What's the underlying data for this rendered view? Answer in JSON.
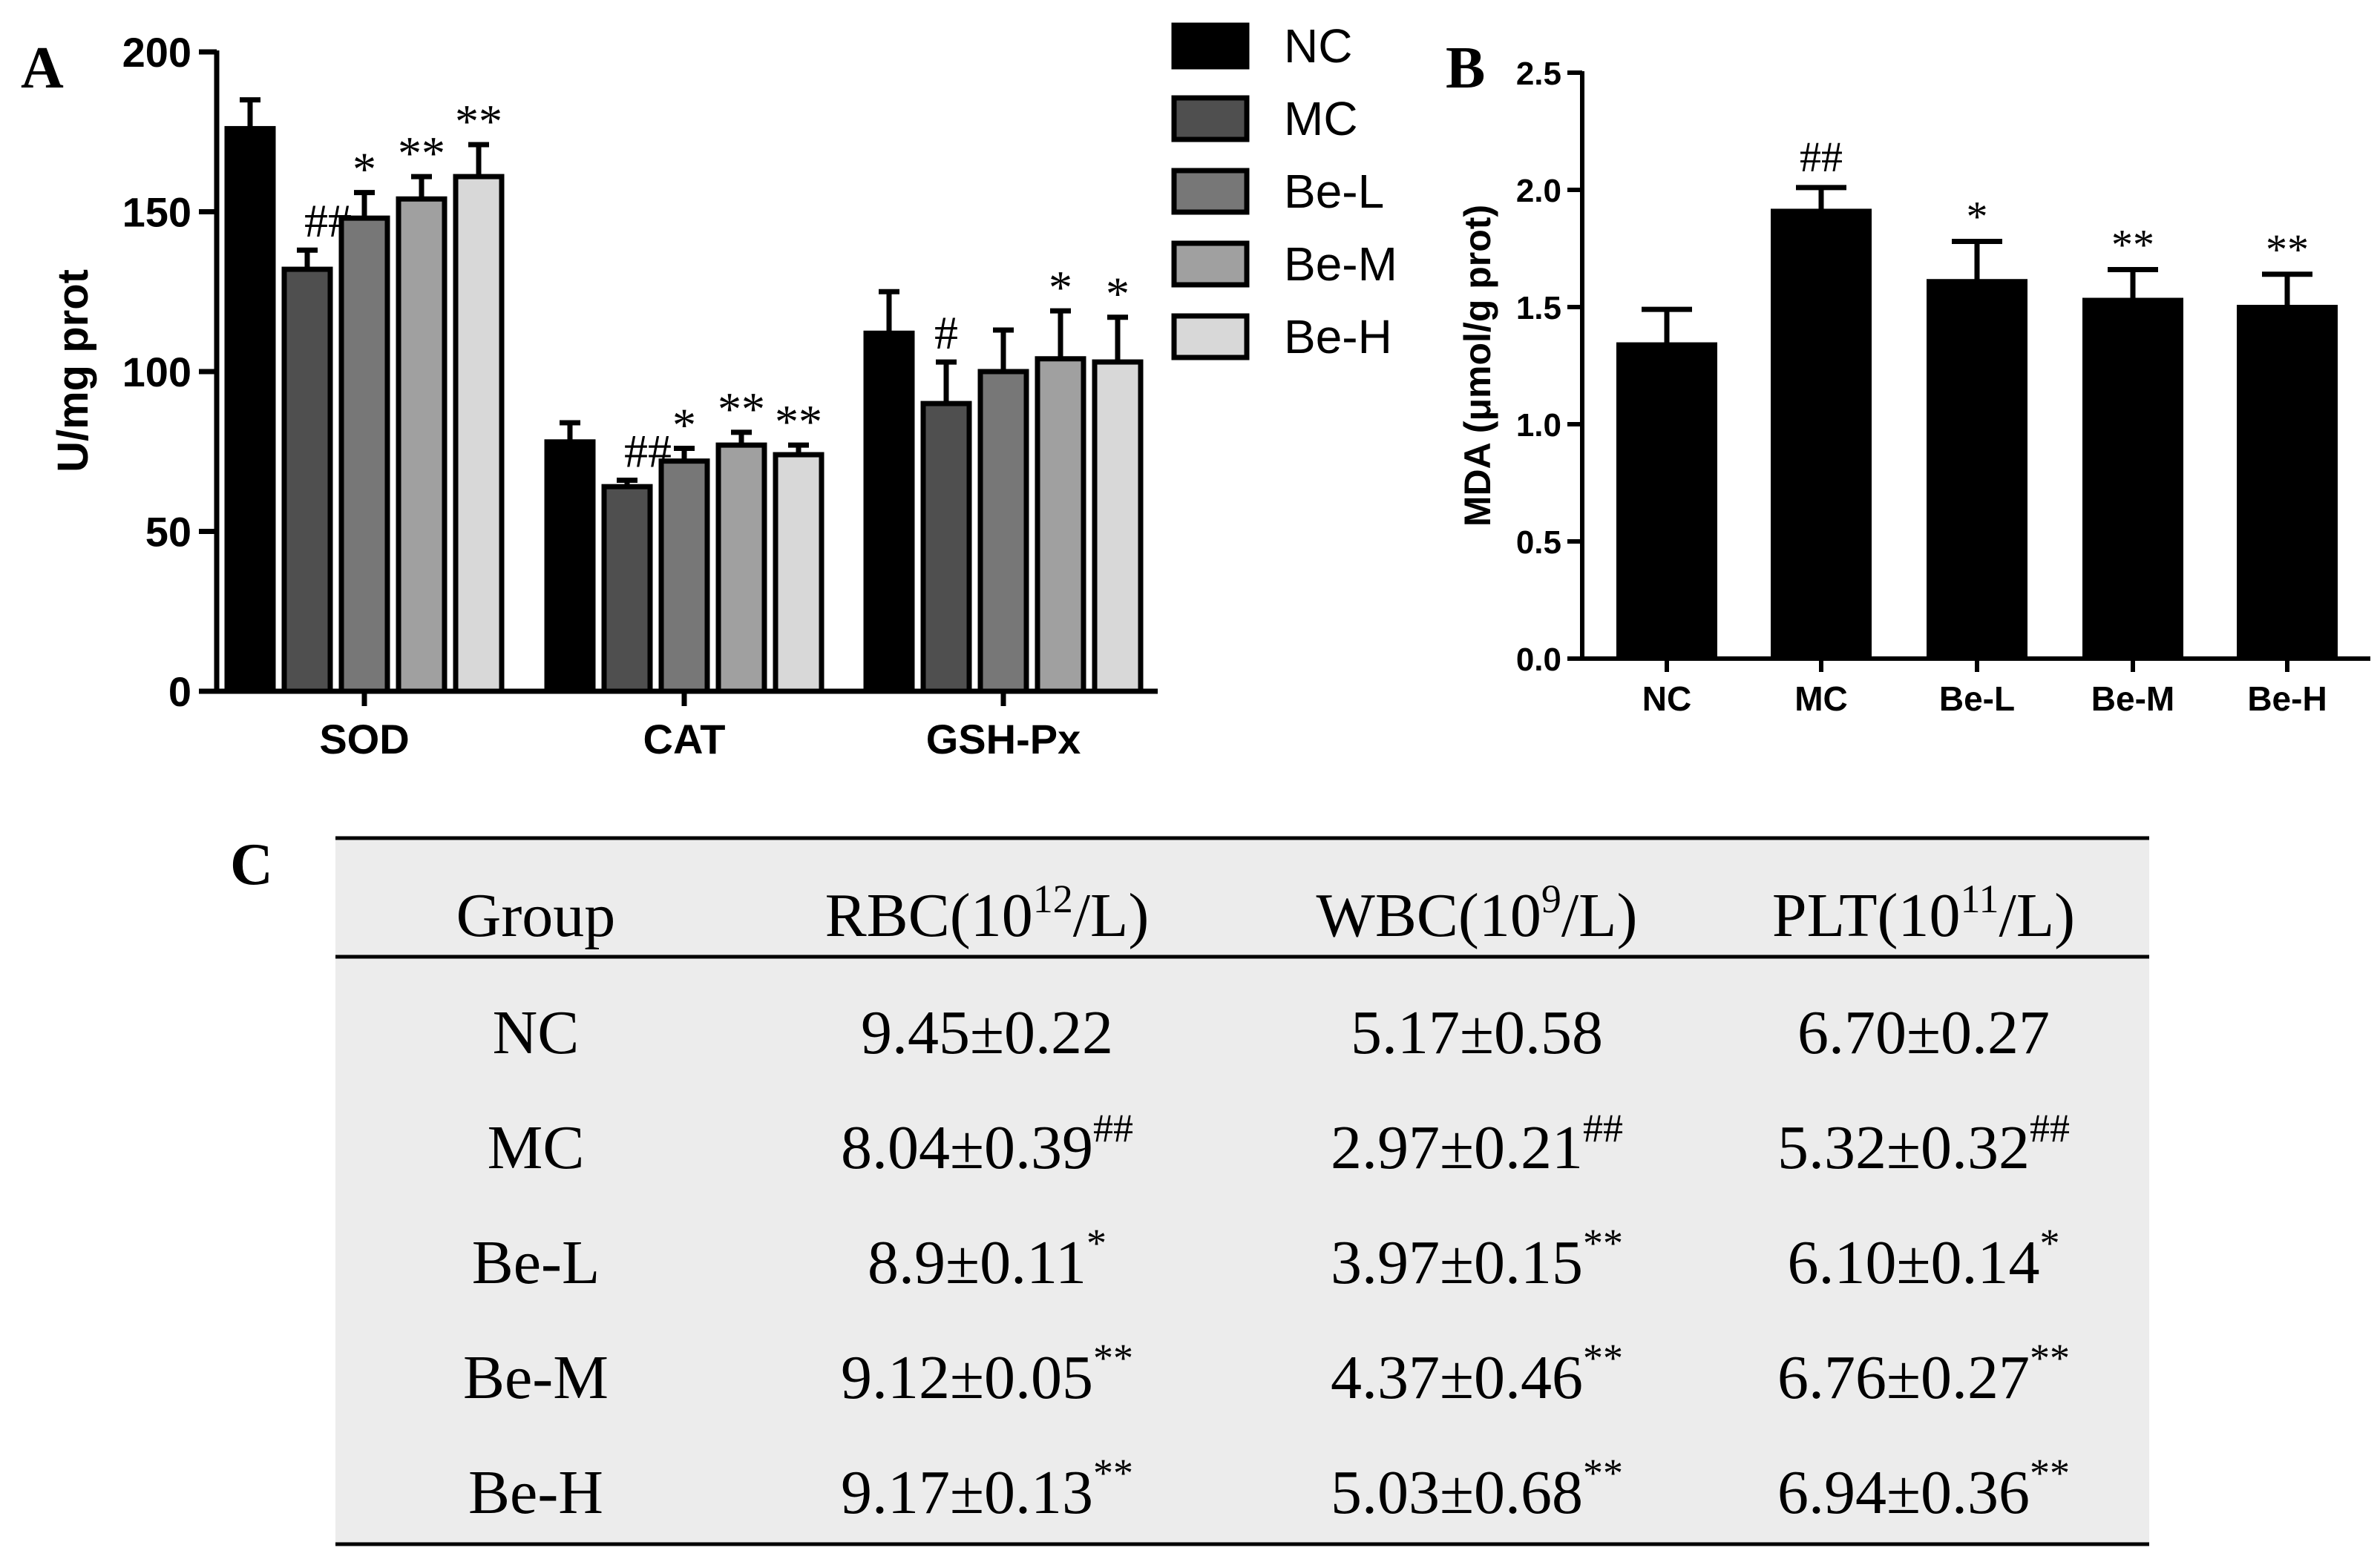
{
  "colors": {
    "NC": "#000000",
    "MC": "#4f4f4f",
    "Be-L": "#777777",
    "Be-M": "#a0a0a0",
    "Be-H": "#d8d8d8",
    "table_bg": "#ececec"
  },
  "chart_data": [
    {
      "panel": "A",
      "type": "bar",
      "title": "",
      "xlabel": "",
      "ylabel": "U/mg prot",
      "ylim": [
        0,
        200
      ],
      "yticks": [
        "0",
        "50",
        "100",
        "150",
        "200"
      ],
      "categories": [
        "SOD",
        "CAT",
        "GSH-Px"
      ],
      "legend": "top-right",
      "series": [
        {
          "name": "NC",
          "values": [
            176,
            78,
            112
          ],
          "errors": [
            9,
            6,
            13
          ],
          "marks": [
            "",
            "",
            ""
          ]
        },
        {
          "name": "MC",
          "values": [
            132,
            64,
            90
          ],
          "errors": [
            6,
            2,
            13
          ],
          "marks": [
            "##",
            "##",
            "#"
          ]
        },
        {
          "name": "Be-L",
          "values": [
            148,
            72,
            100
          ],
          "errors": [
            8,
            4,
            13
          ],
          "marks": [
            "*",
            "*",
            ""
          ]
        },
        {
          "name": "Be-M",
          "values": [
            154,
            77,
            104
          ],
          "errors": [
            7,
            4,
            15
          ],
          "marks": [
            "**",
            "**",
            "*"
          ]
        },
        {
          "name": "Be-H",
          "values": [
            161,
            74,
            103
          ],
          "errors": [
            10,
            3,
            14
          ],
          "marks": [
            "**",
            "**",
            "*"
          ]
        }
      ]
    },
    {
      "panel": "B",
      "type": "bar",
      "title": "",
      "xlabel": "",
      "ylabel": "MDA (μmol/g prot)",
      "ylim": [
        0,
        2.5
      ],
      "yticks": [
        "0.0",
        "0.5",
        "1.0",
        "1.5",
        "2.0",
        "2.5"
      ],
      "categories": [
        "NC",
        "MC",
        "Be-L",
        "Be-M",
        "Be-H"
      ],
      "values": [
        1.34,
        1.91,
        1.61,
        1.53,
        1.5
      ],
      "errors": [
        0.15,
        0.1,
        0.17,
        0.13,
        0.14
      ],
      "marks": [
        "",
        "##",
        "*",
        "**",
        "**"
      ]
    },
    {
      "panel": "C",
      "type": "table",
      "columns": [
        {
          "base": "Group",
          "sup": "",
          "tail": ""
        },
        {
          "base": "RBC(10",
          "sup": "12",
          "tail": "/L)"
        },
        {
          "base": "WBC(10",
          "sup": "9",
          "tail": "/L)"
        },
        {
          "base": "PLT(10",
          "sup": "11",
          "tail": "/L)"
        }
      ],
      "rows": [
        {
          "group": "NC",
          "cells": [
            {
              "v": "9.45±0.22",
              "s": ""
            },
            {
              "v": "5.17±0.58",
              "s": ""
            },
            {
              "v": "6.70±0.27",
              "s": ""
            }
          ]
        },
        {
          "group": "MC",
          "cells": [
            {
              "v": "8.04±0.39",
              "s": "##"
            },
            {
              "v": "2.97±0.21",
              "s": "##"
            },
            {
              "v": "5.32±0.32",
              "s": "##"
            }
          ]
        },
        {
          "group": "Be-L",
          "cells": [
            {
              "v": "8.9±0.11",
              "s": "*"
            },
            {
              "v": "3.97±0.15",
              "s": "**"
            },
            {
              "v": "6.10±0.14",
              "s": "*"
            }
          ]
        },
        {
          "group": "Be-M",
          "cells": [
            {
              "v": "9.12±0.05",
              "s": "**"
            },
            {
              "v": "4.37±0.46",
              "s": "**"
            },
            {
              "v": "6.76±0.27",
              "s": "**"
            }
          ]
        },
        {
          "group": "Be-H",
          "cells": [
            {
              "v": "9.17±0.13",
              "s": "**"
            },
            {
              "v": "5.03±0.68",
              "s": "**"
            },
            {
              "v": "6.94±0.36",
              "s": "**"
            }
          ]
        }
      ]
    }
  ],
  "labels": {
    "panelA": "A",
    "panelB": "B",
    "panelC": "C"
  }
}
